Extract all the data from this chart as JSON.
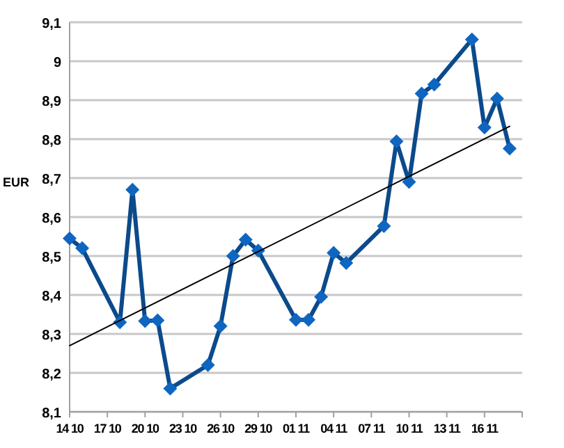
{
  "chart_data": {
    "type": "line",
    "ylabel": "EUR",
    "xlim": [
      "--10-14",
      "--11-19"
    ],
    "xticks": [
      {
        "value": "--10-14",
        "label": "14 10"
      },
      {
        "value": "--10-17",
        "label": "17 10"
      },
      {
        "value": "--10-20",
        "label": "20 10"
      },
      {
        "value": "--10-23",
        "label": "23 10"
      },
      {
        "value": "--10-26",
        "label": "26 10"
      },
      {
        "value": "--10-29",
        "label": "29 10"
      },
      {
        "value": "--11-01",
        "label": "01 11"
      },
      {
        "value": "--11-04",
        "label": "04 11"
      },
      {
        "value": "--11-07",
        "label": "07 11"
      },
      {
        "value": "--11-10",
        "label": "10 11"
      },
      {
        "value": "--11-13",
        "label": "13 11"
      },
      {
        "value": "--11-16",
        "label": "16 11"
      },
      {
        "value": "--11-19",
        "label": null
      }
    ],
    "ylim": [
      8.1,
      9.1
    ],
    "yticks": [
      {
        "value": 8.1,
        "label": "8,1"
      },
      {
        "value": 8.2,
        "label": "8,2"
      },
      {
        "value": 8.3,
        "label": "8,3"
      },
      {
        "value": 8.4,
        "label": "8,4"
      },
      {
        "value": 8.5,
        "label": "8,5"
      },
      {
        "value": 8.6,
        "label": "8,6"
      },
      {
        "value": 8.7,
        "label": "8,7"
      },
      {
        "value": 8.8,
        "label": "8,8"
      },
      {
        "value": 8.9,
        "label": "8,9"
      },
      9,
      {
        "value": 9.1,
        "label": "9,1"
      }
    ],
    "grid": "y",
    "marker": "diamond",
    "line_style": "solid",
    "series": [
      {
        "color": "#0b4a8b",
        "x": [
          "--10-14",
          "--10-15",
          "--10-18",
          "--10-19",
          "--10-20",
          "--10-21",
          "--10-22",
          "--10-25",
          "--10-26",
          "--10-27",
          "--10-28",
          "--10-29",
          "--11-01",
          "--11-02",
          "--11-03",
          "--11-04",
          "--11-05",
          "--11-08",
          "--11-09",
          "--11-10",
          "--11-11",
          "--11-12",
          "--11-15",
          "--11-16",
          "--11-17",
          "--11-18"
        ],
        "values": [
          8.545,
          8.52,
          8.33,
          8.67,
          8.333,
          8.335,
          8.16,
          8.22,
          8.32,
          8.5,
          8.542,
          8.514,
          8.336,
          8.336,
          8.395,
          8.508,
          8.482,
          8.577,
          8.794,
          8.69,
          8.917,
          8.94,
          9.056,
          8.83,
          8.904,
          8.776
        ]
      },
      {
        "type": "line",
        "color": "#000000",
        "marker": "none",
        "x": [
          "--10-14",
          "--11-18"
        ],
        "values": [
          8.27,
          8.833
        ]
      }
    ]
  }
}
